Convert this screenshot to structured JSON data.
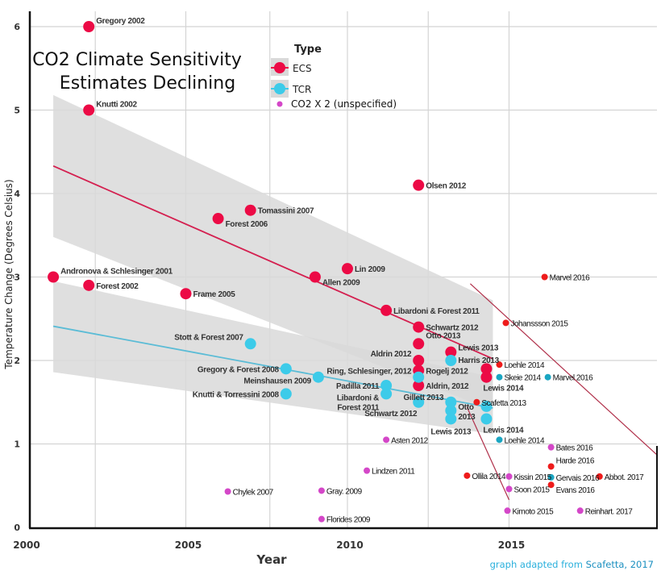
{
  "chart_data": {
    "type": "scatter",
    "title_lines": [
      "CO2 Climate Sensitivity",
      "Estimates Declining"
    ],
    "xlabel": "Year",
    "ylabel": "Temperature Change (Degrees Celsius)",
    "xlim": [
      2000,
      2019.6
    ],
    "ylim": [
      0,
      6.2
    ],
    "xticks": [
      2000,
      2005,
      2010,
      2015
    ],
    "yticks": [
      0,
      1,
      2,
      3,
      4,
      5,
      6
    ],
    "grid": true,
    "legend": {
      "title": "Type",
      "placement": "top-center",
      "entries": [
        {
          "name": "ECS",
          "color": "#ec0a45"
        },
        {
          "name": "TCR",
          "color": "#3ccbe9"
        },
        {
          "name": "CO2 X 2 (unspecified)",
          "color": "#d447c8"
        }
      ]
    },
    "colors": {
      "ecs": "#ec0a45",
      "tcr": "#3ccbe9",
      "ecs_small": "#ee1b1b",
      "tcr_small": "#1ba6c2",
      "unspecified": "#d447c8",
      "band": "#d9d9d9",
      "ecs_trend": "#d42050",
      "tcr_trend": "#5bbcd6",
      "annotation": "#b0304a"
    },
    "trends": [
      {
        "series": "ECS",
        "line": [
          [
            2000.9,
            4.33
          ],
          [
            2014.5,
            2.02
          ]
        ],
        "band_upper": [
          [
            2000.9,
            5.18
          ],
          [
            2014.5,
            2.72
          ]
        ],
        "band_lower": [
          [
            2000.9,
            3.48
          ],
          [
            2014.5,
            1.4
          ]
        ]
      },
      {
        "series": "TCR",
        "line": [
          [
            2000.9,
            2.41
          ],
          [
            2014.5,
            1.43
          ]
        ],
        "band_upper": [
          [
            2000.9,
            2.95
          ],
          [
            2014.5,
            1.8
          ]
        ],
        "band_lower": [
          [
            2000.9,
            1.86
          ],
          [
            2014.5,
            1.12
          ]
        ]
      }
    ],
    "annotation_lines": [
      [
        [
          2013.8,
          2.92
        ],
        [
          2019.6,
          0.86
        ]
      ],
      [
        [
          2013.7,
          1.44
        ],
        [
          2015.0,
          0.33
        ]
      ]
    ],
    "series": [
      {
        "name": "ECS",
        "size": "large",
        "color_key": "ecs",
        "points": [
          {
            "x": 2002,
            "y": 6.0,
            "label": "Gregory 2002",
            "pos": "ur"
          },
          {
            "x": 2002,
            "y": 5.0,
            "label": "Knutti 2002",
            "pos": "ur"
          },
          {
            "x": 2000.9,
            "y": 3.0,
            "label": "Andronova & Schlesinger 2001",
            "pos": "ur"
          },
          {
            "x": 2002,
            "y": 2.9,
            "label": "Forest 2002",
            "pos": "r"
          },
          {
            "x": 2005,
            "y": 2.8,
            "label": "Frame 2005",
            "pos": "r"
          },
          {
            "x": 2006,
            "y": 3.7,
            "label": "Forest 2006",
            "pos": "dr"
          },
          {
            "x": 2007,
            "y": 3.8,
            "label": "Tomassini 2007",
            "pos": "r"
          },
          {
            "x": 2009,
            "y": 3.0,
            "label": "Allen 2009",
            "pos": "dr"
          },
          {
            "x": 2010,
            "y": 3.1,
            "label": "Lin 2009",
            "pos": "r"
          },
          {
            "x": 2012.2,
            "y": 4.1,
            "label": "Olsen 2012",
            "pos": "r"
          },
          {
            "x": 2011.2,
            "y": 2.6,
            "label": "Libardoni & Forest 2011",
            "pos": "r"
          },
          {
            "x": 2012.2,
            "y": 2.4,
            "label": "Schwartz 2012",
            "pos": "r"
          },
          {
            "x": 2012.2,
            "y": 2.2,
            "label": "Otto 2013",
            "pos": "ur"
          },
          {
            "x": 2012.2,
            "y": 2.0,
            "label": "Aldrin 2012",
            "pos": "ul"
          },
          {
            "x": 2012.2,
            "y": 1.88,
            "label": "Ring, Schlesinger, 2012",
            "pos": "l"
          },
          {
            "x": 2012.2,
            "y": 1.7,
            "label": "Aldrin, 2012",
            "pos": "ur"
          },
          {
            "x": 2013.2,
            "y": 2.1,
            "label": "Lewis 2013",
            "pos": "r"
          },
          {
            "x": 2014.3,
            "y": 1.9,
            "label": "",
            "pos": "r"
          },
          {
            "x": 2014.3,
            "y": 1.8,
            "label": "Lewis 2014",
            "pos": "b"
          }
        ]
      },
      {
        "name": "TCR",
        "size": "large",
        "color_key": "tcr",
        "points": [
          {
            "x": 2007,
            "y": 2.2,
            "label": "Stott & Forest 2007",
            "pos": "ul"
          },
          {
            "x": 2008.1,
            "y": 1.9,
            "label": "Gregory & Forest 2008",
            "pos": "l"
          },
          {
            "x": 2009.1,
            "y": 1.8,
            "label": "Meinshausen 2009",
            "pos": "l"
          },
          {
            "x": 2008.1,
            "y": 1.6,
            "label": "Knutti & Torressini 2008",
            "pos": "l"
          },
          {
            "x": 2011.2,
            "y": 1.7,
            "label": "Padilla 2011",
            "pos": "l"
          },
          {
            "x": 2011.2,
            "y": 1.6,
            "label": "Libardoni &\nForest 2011",
            "pos": "dl"
          },
          {
            "x": 2012.2,
            "y": 1.8,
            "label": "Rogelj 2012",
            "pos": "r"
          },
          {
            "x": 2012.2,
            "y": 1.5,
            "label": "Schwartz 2012",
            "pos": "bl"
          },
          {
            "x": 2013.2,
            "y": 2.0,
            "label": "Harris 2013",
            "pos": "ur"
          },
          {
            "x": 2013.2,
            "y": 1.5,
            "label": "Gillett 2013",
            "pos": "ul"
          },
          {
            "x": 2013.2,
            "y": 1.4,
            "label": "Otto\n2013",
            "pos": "r"
          },
          {
            "x": 2013.2,
            "y": 1.3,
            "label": "Lewis 2013",
            "pos": "b"
          },
          {
            "x": 2014.3,
            "y": 1.45,
            "label": "",
            "pos": "r"
          },
          {
            "x": 2014.3,
            "y": 1.3,
            "label": "Lewis 2014",
            "pos": "br"
          }
        ]
      },
      {
        "name": "ECS (small)",
        "size": "small",
        "color_key": "ecs_small",
        "points": [
          {
            "x": 2016.1,
            "y": 3.0,
            "label": "Marvel 2016",
            "pos": "r"
          },
          {
            "x": 2014.9,
            "y": 2.45,
            "label": "Johanssson 2015",
            "pos": "r"
          },
          {
            "x": 2014.7,
            "y": 1.95,
            "label": "Loehle 2014",
            "pos": "r"
          },
          {
            "x": 2014.0,
            "y": 1.5,
            "label": "Scafetta 2013",
            "pos": "r"
          },
          {
            "x": 2013.7,
            "y": 0.62,
            "label": "Ollila 2014",
            "pos": "r"
          },
          {
            "x": 2016.3,
            "y": 0.73,
            "label": "Harde 2016",
            "pos": "ur"
          },
          {
            "x": 2016.3,
            "y": 0.51,
            "label": "Evans 2016",
            "pos": "dr"
          },
          {
            "x": 2017.8,
            "y": 0.61,
            "label": "Abbot. 2017",
            "pos": "r"
          }
        ]
      },
      {
        "name": "TCR (small)",
        "size": "small",
        "color_key": "tcr_small",
        "points": [
          {
            "x": 2014.7,
            "y": 1.8,
            "label": "Skeie 2014",
            "pos": "r"
          },
          {
            "x": 2016.2,
            "y": 1.8,
            "label": "Marvel 2016",
            "pos": "r"
          },
          {
            "x": 2014.7,
            "y": 1.05,
            "label": "Loehle 2014",
            "pos": "r"
          },
          {
            "x": 2016.3,
            "y": 0.6,
            "label": "Gervais 2016",
            "pos": "r"
          }
        ]
      },
      {
        "name": "CO2 X 2 (unspecified)",
        "size": "small",
        "color_key": "unspecified",
        "points": [
          {
            "x": 2011.2,
            "y": 1.05,
            "label": "Asten 2012",
            "pos": "r"
          },
          {
            "x": 2010.6,
            "y": 0.68,
            "label": "Lindzen 2011",
            "pos": "r"
          },
          {
            "x": 2006.3,
            "y": 0.43,
            "label": "Chylek 2007",
            "pos": "r"
          },
          {
            "x": 2009.2,
            "y": 0.44,
            "label": "Gray. 2009",
            "pos": "r"
          },
          {
            "x": 2009.2,
            "y": 0.1,
            "label": "Florides 2009",
            "pos": "r"
          },
          {
            "x": 2015.0,
            "y": 0.61,
            "label": "Kissin 2015",
            "pos": "r"
          },
          {
            "x": 2015.0,
            "y": 0.46,
            "label": "Soon 2015",
            "pos": "r"
          },
          {
            "x": 2014.95,
            "y": 0.2,
            "label": "Kimoto 2015",
            "pos": "r"
          },
          {
            "x": 2016.3,
            "y": 0.96,
            "label": "Bates 2016",
            "pos": "r"
          },
          {
            "x": 2017.2,
            "y": 0.2,
            "label": "Reinhart. 2017",
            "pos": "r"
          }
        ]
      }
    ]
  },
  "credit": {
    "prefix": "graph adapted from ",
    "source": "Scafetta, 2017"
  }
}
